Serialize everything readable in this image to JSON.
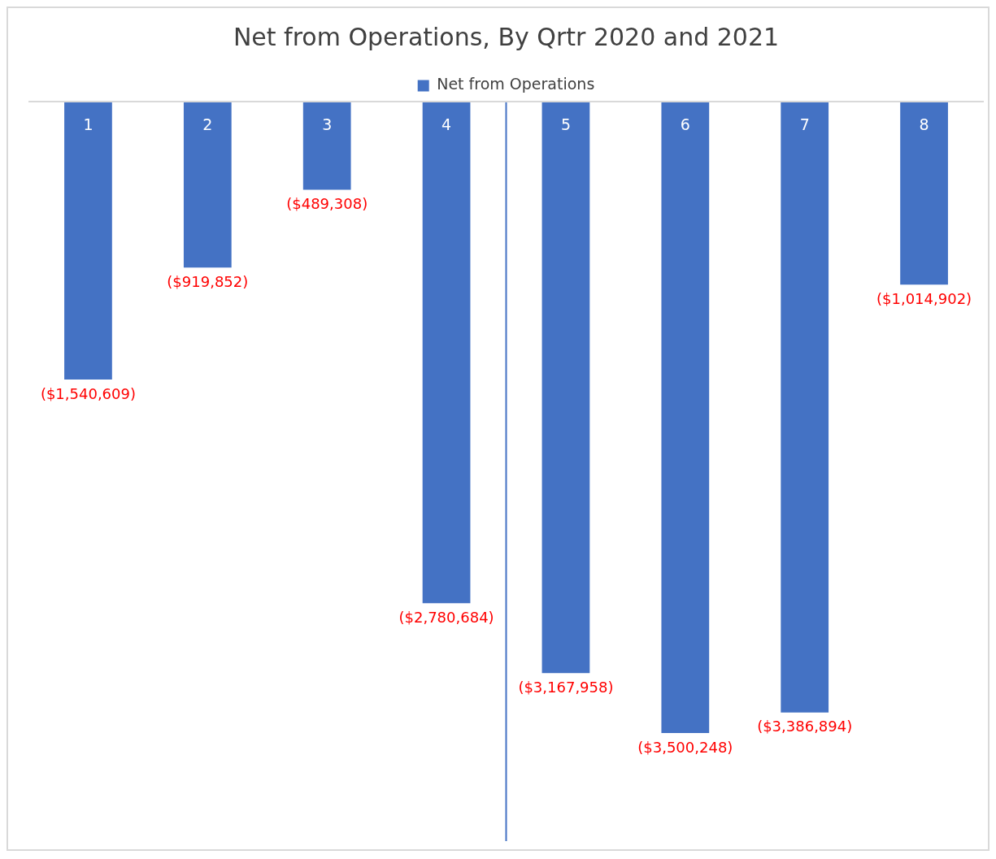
{
  "chart_data": {
    "type": "bar",
    "title": "Net from Operations, By Qrtr 2020 and 2021",
    "x": [
      1,
      2,
      3,
      4,
      5,
      6,
      7,
      8
    ],
    "xlim": [
      0.5,
      8.5
    ],
    "xticks": [
      1,
      2,
      3,
      4,
      5,
      6,
      7,
      8
    ],
    "ylim": [
      -4100000,
      0
    ],
    "tick_labels": "x",
    "series": [
      {
        "name": "Net from Operations",
        "color": "#4472c4",
        "values": [
          -1540609,
          -919852,
          -489308,
          -2780684,
          -3167958,
          -3500248,
          -3386894,
          -1014902
        ],
        "value_labels": [
          "($1,540,609)",
          "($919,852)",
          "($489,308)",
          "($2,780,684)",
          "($3,167,958)",
          "($3,500,248)",
          "($3,386,894)",
          "($1,014,902)"
        ]
      }
    ],
    "ref_lines": [
      {
        "axis": "x",
        "value": 4.5,
        "color": "#4472c4"
      }
    ],
    "legend": "top",
    "grid": false
  }
}
